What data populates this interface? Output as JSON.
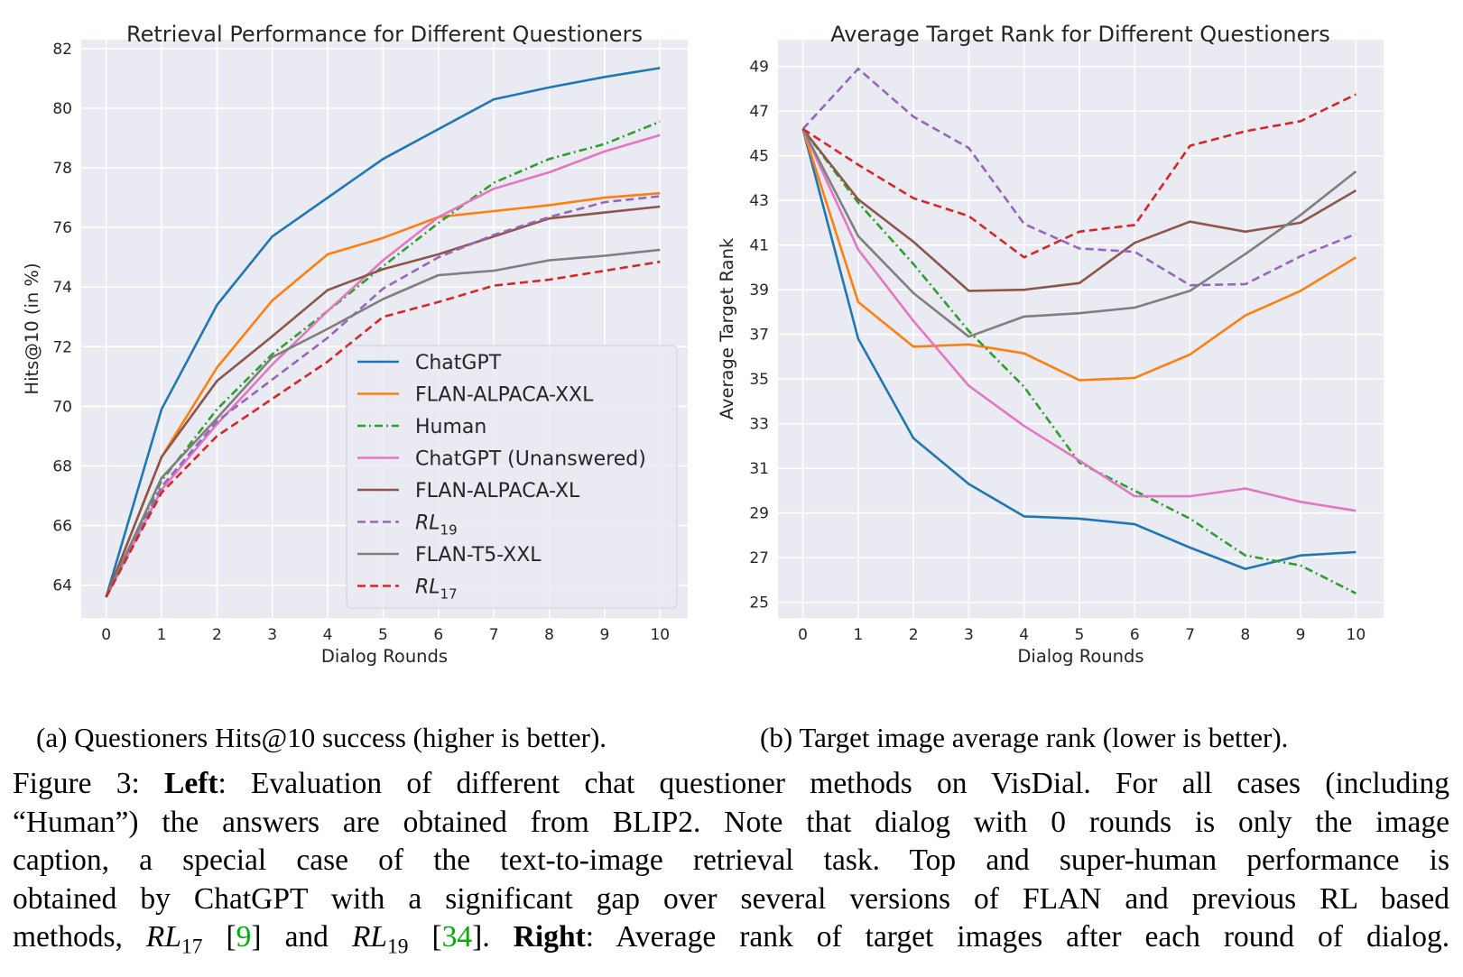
{
  "chart_data": [
    {
      "type": "line",
      "title": "Retrieval Performance for Different Questioners",
      "xlabel": "Dialog Rounds",
      "ylabel": "Hits@10 (in %)",
      "x": [
        0,
        1,
        2,
        3,
        4,
        5,
        6,
        7,
        8,
        9,
        10
      ],
      "xticks": [
        "0",
        "1",
        "2",
        "3",
        "4",
        "5",
        "6",
        "7",
        "8",
        "9",
        "10"
      ],
      "xlim": [
        -0.45,
        10.5
      ],
      "ylim": [
        62.9,
        82.3
      ],
      "yticks": [
        "64",
        "66",
        "68",
        "70",
        "72",
        "74",
        "76",
        "78",
        "80",
        "82"
      ],
      "ytick_values": [
        64,
        66,
        68,
        70,
        72,
        74,
        76,
        78,
        80,
        82
      ],
      "grid": true,
      "legend_position": "center-right",
      "series": [
        {
          "name": "ChatGPT",
          "color": "#1f77b4",
          "dash": "solid",
          "values": [
            63.6,
            69.9,
            73.4,
            75.7,
            77.0,
            78.3,
            79.3,
            80.3,
            80.7,
            81.05,
            81.35
          ]
        },
        {
          "name": "FLAN-ALPACA-XXL",
          "color": "#ff7f0e",
          "dash": "solid",
          "values": [
            63.6,
            68.3,
            71.3,
            73.55,
            75.1,
            75.65,
            76.35,
            76.55,
            76.75,
            77.0,
            77.15
          ]
        },
        {
          "name": "Human",
          "color": "#2ca02c",
          "dash": "dashdot",
          "values": [
            63.6,
            67.5,
            69.9,
            71.75,
            73.2,
            74.7,
            76.15,
            77.5,
            78.3,
            78.8,
            79.55
          ]
        },
        {
          "name": "ChatGPT (Unanswered)",
          "color": "#e377c2",
          "dash": "solid",
          "values": [
            63.6,
            67.2,
            69.4,
            71.4,
            73.2,
            74.9,
            76.35,
            77.3,
            77.85,
            78.55,
            79.1
          ]
        },
        {
          "name": "FLAN-ALPACA-XL",
          "color": "#8c564b",
          "dash": "solid",
          "values": [
            63.6,
            68.3,
            70.85,
            72.35,
            73.9,
            74.6,
            75.1,
            75.7,
            76.3,
            76.5,
            76.7
          ]
        },
        {
          "name": "RL19",
          "label_base": "RL",
          "label_sub": "19",
          "color": "#9467bd",
          "dash": "dashed",
          "values": [
            63.6,
            67.3,
            69.5,
            70.9,
            72.3,
            73.95,
            75.0,
            75.75,
            76.35,
            76.85,
            77.05
          ]
        },
        {
          "name": "FLAN-T5-XXL",
          "color": "#7f7f7f",
          "dash": "solid",
          "values": [
            63.6,
            67.6,
            69.6,
            71.65,
            72.6,
            73.6,
            74.4,
            74.55,
            74.9,
            75.05,
            75.25
          ]
        },
        {
          "name": "RL17",
          "label_base": "RL",
          "label_sub": "17",
          "color": "#d62728",
          "dash": "dashed",
          "values": [
            63.6,
            67.1,
            69.0,
            70.25,
            71.5,
            73.0,
            73.5,
            74.05,
            74.25,
            74.55,
            74.85
          ]
        }
      ]
    },
    {
      "type": "line",
      "title": "Average Target Rank for Different Questioners",
      "xlabel": "Dialog Rounds",
      "ylabel": "Average Target Rank",
      "x": [
        0,
        1,
        2,
        3,
        4,
        5,
        6,
        7,
        8,
        9,
        10
      ],
      "xticks": [
        "0",
        "1",
        "2",
        "3",
        "4",
        "5",
        "6",
        "7",
        "8",
        "9",
        "10"
      ],
      "xlim": [
        -0.45,
        10.5
      ],
      "ylim": [
        24.3,
        50.2
      ],
      "yticks": [
        "25",
        "27",
        "29",
        "31",
        "33",
        "35",
        "37",
        "39",
        "41",
        "43",
        "45",
        "47",
        "49"
      ],
      "ytick_values": [
        25,
        27,
        29,
        31,
        33,
        35,
        37,
        39,
        41,
        43,
        45,
        47,
        49
      ],
      "grid": true,
      "series": [
        {
          "name": "ChatGPT",
          "color": "#1f77b4",
          "dash": "solid",
          "values": [
            46.2,
            36.8,
            32.35,
            30.3,
            28.85,
            28.75,
            28.5,
            27.45,
            26.5,
            27.1,
            27.25
          ]
        },
        {
          "name": "FLAN-ALPACA-XXL",
          "color": "#ff7f0e",
          "dash": "solid",
          "values": [
            46.2,
            38.45,
            36.45,
            36.55,
            36.15,
            34.95,
            35.05,
            36.1,
            37.85,
            38.95,
            40.45
          ]
        },
        {
          "name": "Human",
          "color": "#2ca02c",
          "dash": "dashdot",
          "values": [
            46.2,
            42.9,
            40.15,
            37.15,
            34.65,
            31.25,
            30.0,
            28.75,
            27.1,
            26.65,
            25.4
          ]
        },
        {
          "name": "ChatGPT (Unanswered)",
          "color": "#e377c2",
          "dash": "solid",
          "values": [
            46.2,
            40.8,
            37.6,
            34.7,
            32.9,
            31.35,
            29.75,
            29.75,
            30.1,
            29.5,
            29.1
          ]
        },
        {
          "name": "FLAN-ALPACA-XL",
          "color": "#8c564b",
          "dash": "solid",
          "values": [
            46.2,
            43.05,
            41.15,
            38.95,
            39.0,
            39.3,
            41.1,
            42.05,
            41.6,
            42.0,
            43.45
          ]
        },
        {
          "name": "RL19",
          "color": "#9467bd",
          "dash": "dashed",
          "values": [
            46.2,
            48.9,
            46.75,
            45.35,
            41.95,
            40.85,
            40.7,
            39.2,
            39.25,
            40.5,
            41.5
          ]
        },
        {
          "name": "FLAN-T5-XXL",
          "color": "#7f7f7f",
          "dash": "solid",
          "values": [
            46.2,
            41.4,
            38.85,
            36.9,
            37.8,
            37.95,
            38.2,
            38.95,
            40.6,
            42.35,
            44.3
          ]
        },
        {
          "name": "RL17",
          "color": "#d62728",
          "dash": "dashed",
          "values": [
            46.2,
            44.6,
            43.1,
            42.3,
            40.45,
            41.6,
            41.9,
            45.45,
            46.1,
            46.55,
            47.75
          ]
        }
      ]
    }
  ],
  "captions": {
    "sub_a": "(a) Questioners Hits@10 success (higher is better).",
    "sub_b": "(b) Target image average rank (lower is better).",
    "figure": {
      "label": "Figure 3:",
      "left_bold": "Left",
      "t1": ": Evaluation of different chat questioner methods on VisDial. For all cases (including",
      "t2": "“Human”) the answers are obtained from BLIP2. Note that dialog with 0 rounds is only the image",
      "t3": "caption, a special case of the text-to-image retrieval task.  Top and super-human performance is",
      "t4": "obtained by ChatGPT with a significant gap over several versions of FLAN and previous RL based",
      "t5a": "methods,",
      "rl17_base": "RL",
      "rl17_sub": "17",
      "ref1": "9",
      "t5b": "and",
      "rl19_base": "RL",
      "rl19_sub": "19",
      "ref2": "34",
      "right_bold": "Right",
      "t5c": ": Average rank of target images after each round of dialog."
    }
  }
}
